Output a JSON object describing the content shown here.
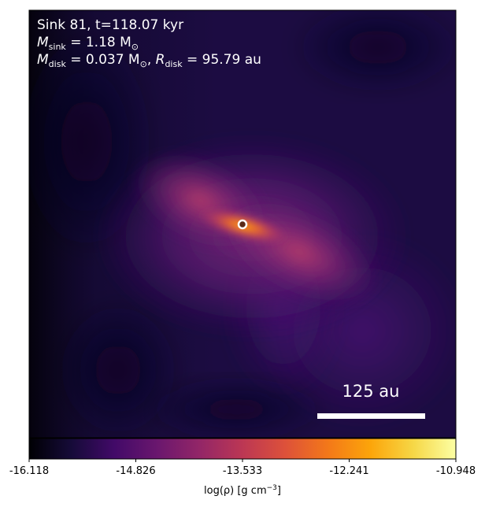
{
  "annotation": {
    "line1": "Sink 81, t=118.07 kyr",
    "line2_symbol": "M",
    "line2_sub": "sink",
    "line2_rest": " = 1.18 M",
    "line2_sun": "⊙",
    "line3_symbol": "M",
    "line3_sub": "disk",
    "line3_mid": " = 0.037 M",
    "line3_sun": "⊙",
    "line3_sep": ", ",
    "line3_symbol2": "R",
    "line3_sub2": "disk",
    "line3_rest": " = 95.79 au"
  },
  "scale_bar": {
    "label": "125 au"
  },
  "colorbar": {
    "label_main": "log(ρ) [g cm",
    "label_exp": "−3",
    "label_end": "]",
    "ticks": [
      "-16.118",
      "-14.826",
      "-13.533",
      "-12.241",
      "-10.948"
    ],
    "colormap": "inferno"
  },
  "colors": {
    "background": "#1a0b3a",
    "sink_ring": "#ffffff",
    "sink_core": "#5a2a18"
  }
}
